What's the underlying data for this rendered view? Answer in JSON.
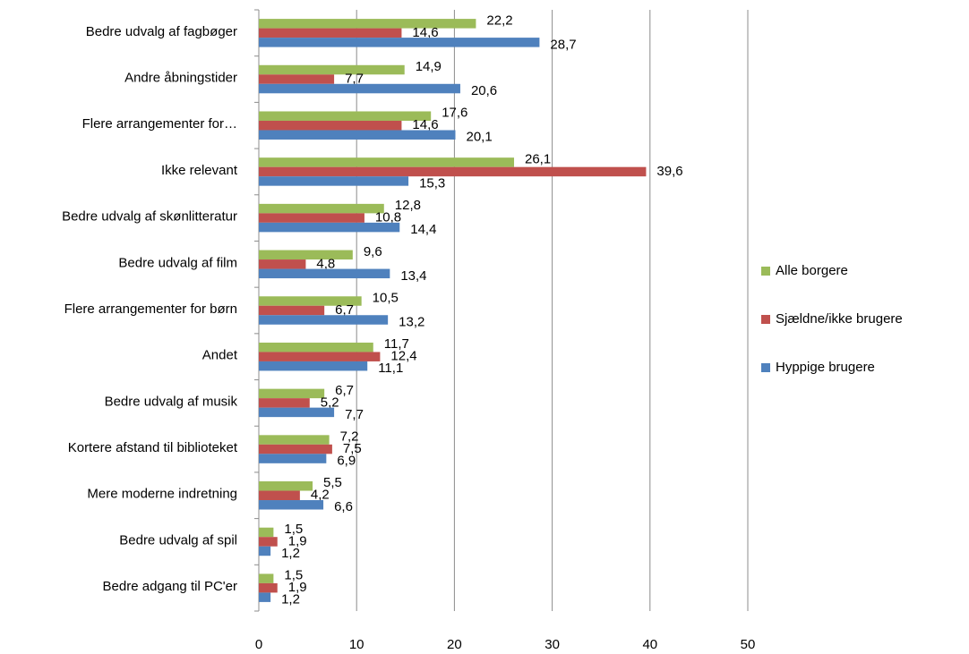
{
  "chart_data": {
    "type": "hbar",
    "categories": [
      "Bedre udvalg af fagbøger",
      "Andre åbningstider",
      "Flere arrangementer for…",
      "Ikke relevant",
      "Bedre udvalg af skønlitteratur",
      "Bedre udvalg af film",
      "Flere arrangementer for børn",
      "Andet",
      "Bedre udvalg af musik",
      "Kortere afstand til biblioteket",
      "Mere moderne indretning",
      "Bedre udvalg af spil",
      "Bedre adgang til PC'er"
    ],
    "series": [
      {
        "name": "Alle borgere",
        "color": "#9bbb59",
        "values": [
          22.2,
          14.9,
          17.6,
          26.1,
          12.8,
          9.6,
          10.5,
          11.7,
          6.7,
          7.2,
          5.5,
          1.5,
          1.5
        ],
        "value_labels": [
          "22,2",
          "14,9",
          "17,6",
          "26,1",
          "12,8",
          "9,6",
          "10,5",
          "11,7",
          "6,7",
          "7,2",
          "5,5",
          "1,5",
          "1,5"
        ]
      },
      {
        "name": "Sjældne/ikke brugere",
        "color": "#c0504d",
        "values": [
          14.6,
          7.7,
          14.6,
          39.6,
          10.8,
          4.8,
          6.7,
          12.4,
          5.2,
          7.5,
          4.2,
          1.9,
          1.9
        ],
        "value_labels": [
          "14,6",
          "7,7",
          "14,6",
          "39,6",
          "10,8",
          "4,8",
          "6,7",
          "12,4",
          "5,2",
          "7,5",
          "4,2",
          "1,9",
          "1,9"
        ]
      },
      {
        "name": "Hyppige brugere",
        "color": "#4f81bd",
        "values": [
          28.7,
          20.6,
          20.1,
          15.3,
          14.4,
          13.4,
          13.2,
          11.1,
          7.7,
          6.9,
          6.6,
          1.2,
          1.2
        ],
        "value_labels": [
          "28,7",
          "20,6",
          "20,1",
          "15,3",
          "14,4",
          "13,4",
          "13,2",
          "11,1",
          "7,7",
          "6,9",
          "6,6",
          "1,2",
          "1,2"
        ]
      }
    ],
    "xlim": [
      0,
      50
    ],
    "xticks": [
      0,
      10,
      20,
      30,
      40,
      50
    ],
    "grid": true,
    "legend": "right"
  }
}
